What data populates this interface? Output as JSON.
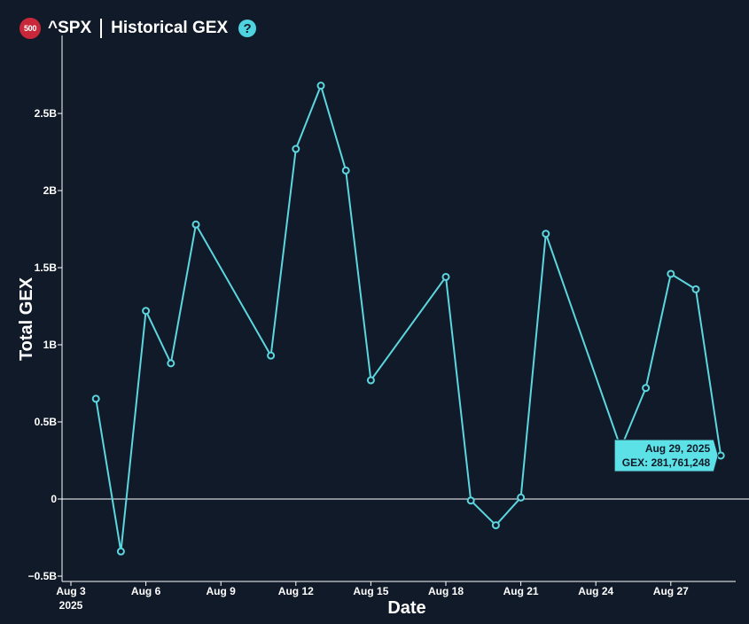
{
  "header": {
    "badge": "500",
    "ticker": "^SPX",
    "title": "Historical GEX",
    "help": "?"
  },
  "colors": {
    "background": "#111a28",
    "line": "#5cd6df",
    "badge": "#c8283a",
    "tooltip": "#5ce1e6"
  },
  "chart_data": {
    "type": "line",
    "xlabel": "Date",
    "ylabel": "Total GEX",
    "ylim": [
      -500000000,
      2800000000
    ],
    "xlim": [
      "2025-08-03",
      "2025-08-30"
    ],
    "yticks": [
      {
        "value": -500000000,
        "label": "−0.5B"
      },
      {
        "value": 0,
        "label": "0"
      },
      {
        "value": 500000000,
        "label": "0.5B"
      },
      {
        "value": 1000000000,
        "label": "1B"
      },
      {
        "value": 1500000000,
        "label": "1.5B"
      },
      {
        "value": 2000000000,
        "label": "2B"
      },
      {
        "value": 2500000000,
        "label": "2.5B"
      }
    ],
    "xticks": [
      {
        "date": "2025-08-03",
        "label": "Aug 3",
        "sublabel": "2025"
      },
      {
        "date": "2025-08-06",
        "label": "Aug 6",
        "sublabel": ""
      },
      {
        "date": "2025-08-09",
        "label": "Aug 9",
        "sublabel": ""
      },
      {
        "date": "2025-08-12",
        "label": "Aug 12",
        "sublabel": ""
      },
      {
        "date": "2025-08-15",
        "label": "Aug 15",
        "sublabel": ""
      },
      {
        "date": "2025-08-18",
        "label": "Aug 18",
        "sublabel": ""
      },
      {
        "date": "2025-08-21",
        "label": "Aug 21",
        "sublabel": ""
      },
      {
        "date": "2025-08-24",
        "label": "Aug 24",
        "sublabel": ""
      },
      {
        "date": "2025-08-27",
        "label": "Aug 27",
        "sublabel": ""
      }
    ],
    "series": [
      {
        "points": [
          {
            "x": "2025-08-04",
            "y": 650000000
          },
          {
            "x": "2025-08-05",
            "y": -340000000
          },
          {
            "x": "2025-08-06",
            "y": 1220000000
          },
          {
            "x": "2025-08-07",
            "y": 880000000
          },
          {
            "x": "2025-08-08",
            "y": 1780000000
          },
          {
            "x": "2025-08-11",
            "y": 930000000
          },
          {
            "x": "2025-08-12",
            "y": 2270000000
          },
          {
            "x": "2025-08-13",
            "y": 2680000000
          },
          {
            "x": "2025-08-14",
            "y": 2130000000
          },
          {
            "x": "2025-08-15",
            "y": 770000000
          },
          {
            "x": "2025-08-18",
            "y": 1440000000
          },
          {
            "x": "2025-08-19",
            "y": -10000000
          },
          {
            "x": "2025-08-20",
            "y": -170000000
          },
          {
            "x": "2025-08-21",
            "y": 10000000
          },
          {
            "x": "2025-08-22",
            "y": 1720000000
          },
          {
            "x": "2025-08-25",
            "y": 330000000
          },
          {
            "x": "2025-08-26",
            "y": 720000000
          },
          {
            "x": "2025-08-27",
            "y": 1460000000
          },
          {
            "x": "2025-08-28",
            "y": 1360000000
          },
          {
            "x": "2025-08-29",
            "y": 281761248
          }
        ]
      }
    ],
    "tooltip": {
      "date": "Aug 29, 2025",
      "value": "GEX: 281,761,248"
    }
  }
}
